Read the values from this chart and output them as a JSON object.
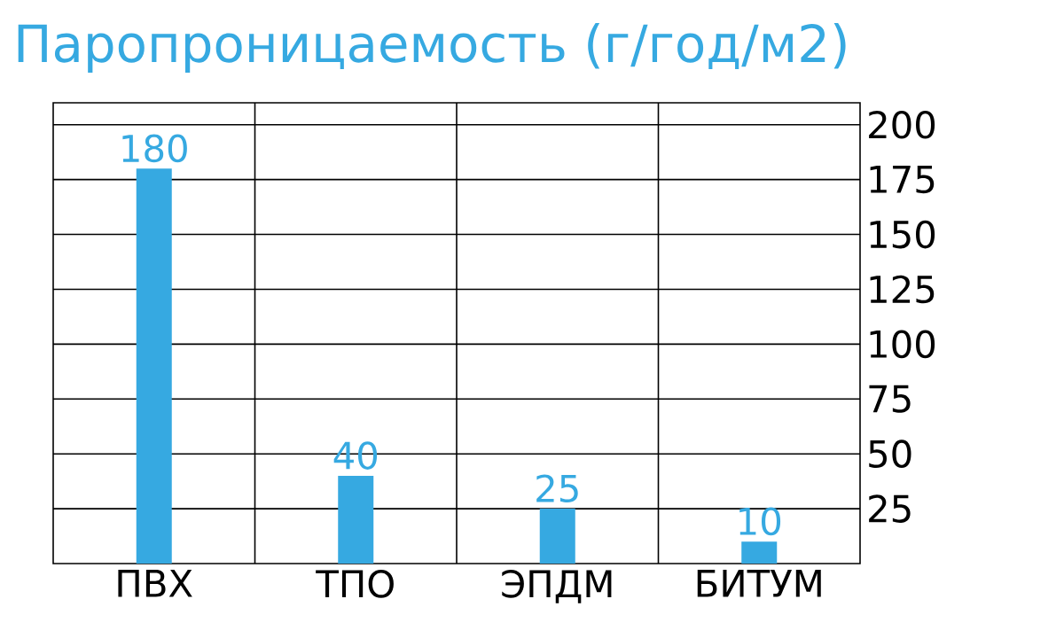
{
  "chart_data": {
    "type": "bar",
    "title": "Паропроницаемость (г/год/м2)",
    "categories": [
      "ПВХ",
      "ТПО",
      "ЭПДМ",
      "БИТУМ"
    ],
    "values": [
      180,
      40,
      25,
      10
    ],
    "color": "#36a9e1",
    "ylim": [
      0,
      210
    ],
    "yticks": [
      25,
      50,
      75,
      100,
      125,
      150,
      175,
      200
    ],
    "grid": true,
    "data_labels": true
  }
}
